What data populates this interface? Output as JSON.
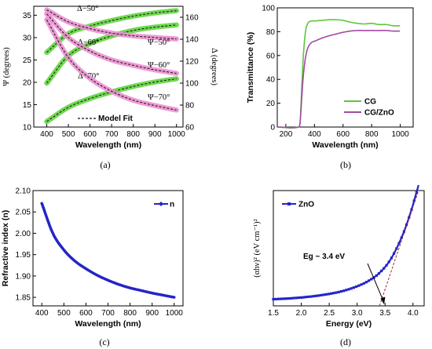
{
  "chart_data": [
    {
      "type": "line",
      "caption": "(a)",
      "xlabel": "Wavelength (nm)",
      "ylabel": "Ψ (degrees)",
      "y2label": "Δ (degrees)",
      "xlim": [
        340,
        1030
      ],
      "ylim": [
        10,
        37
      ],
      "y2lim": [
        60,
        170
      ],
      "xticks": [
        400,
        500,
        600,
        700,
        800,
        900,
        1000
      ],
      "yticks": [
        10,
        15,
        20,
        25,
        30,
        35
      ],
      "y2ticks": [
        60,
        80,
        100,
        120,
        140,
        160
      ],
      "legend": [
        "Model Fit"
      ],
      "legend_position": "bottom-left",
      "series": [
        {
          "name": "Δ−50°",
          "axis": "right",
          "x": [
            400,
            500,
            600,
            700,
            800,
            900,
            1000
          ],
          "y": [
            128,
            145,
            152,
            157,
            161,
            164,
            166
          ]
        },
        {
          "name": "Δ−60°",
          "axis": "right",
          "x": [
            400,
            500,
            600,
            700,
            800,
            900,
            1000
          ],
          "y": [
            100,
            125,
            136,
            143,
            148,
            151,
            153
          ]
        },
        {
          "name": "Δ−70°",
          "axis": "right",
          "x": [
            400,
            500,
            600,
            700,
            800,
            900,
            1000
          ],
          "y": [
            65,
            78,
            86,
            92,
            97,
            101,
            104
          ]
        },
        {
          "name": "Ψ−50°",
          "axis": "left",
          "x": [
            400,
            500,
            600,
            700,
            800,
            900,
            1000
          ],
          "y": [
            36.2,
            33.5,
            32.0,
            31.0,
            30.4,
            30.0,
            29.7
          ]
        },
        {
          "name": "Ψ−60°",
          "axis": "left",
          "x": [
            400,
            500,
            600,
            700,
            800,
            900,
            1000
          ],
          "y": [
            35.3,
            30.0,
            27.0,
            25.0,
            23.8,
            22.8,
            22.0
          ]
        },
        {
          "name": "Ψ−70°",
          "axis": "left",
          "x": [
            400,
            500,
            600,
            700,
            800,
            900,
            1000
          ],
          "y": [
            34.0,
            25.5,
            20.9,
            18.0,
            16.0,
            14.8,
            13.8
          ]
        }
      ],
      "colors": {
        "data": "#ec8fd0",
        "data_alt": "#62d43f",
        "fit": "#111111"
      }
    },
    {
      "type": "line",
      "caption": "(b)",
      "xlabel": "Wavelength (nm)",
      "ylabel": "Transmittance (%)",
      "xlim": [
        140,
        1090
      ],
      "ylim": [
        0,
        100
      ],
      "xticks": [
        200,
        400,
        600,
        800,
        1000
      ],
      "yticks": [
        0,
        20,
        40,
        60,
        80,
        100
      ],
      "legend_position": "lower-right",
      "series": [
        {
          "name": "CG",
          "color": "#5cc73a",
          "x": [
            140,
            290,
            300,
            310,
            320,
            330,
            340,
            350,
            360,
            380,
            400,
            450,
            500,
            550,
            600,
            650,
            700,
            750,
            800,
            850,
            900,
            950,
            1000
          ],
          "y": [
            0,
            0,
            5,
            30,
            55,
            72,
            82,
            86,
            88,
            89,
            89,
            89.5,
            90,
            90,
            89.5,
            88,
            87,
            86.5,
            87,
            86,
            86,
            85,
            85
          ]
        },
        {
          "name": "CG/ZnO",
          "color": "#a24aa6",
          "x": [
            140,
            290,
            300,
            310,
            320,
            330,
            340,
            350,
            360,
            380,
            400,
            450,
            500,
            550,
            600,
            650,
            700,
            750,
            800,
            850,
            900,
            950,
            1000
          ],
          "y": [
            0,
            0,
            4,
            22,
            40,
            52,
            60,
            65,
            68,
            71,
            72,
            74.5,
            76.5,
            78,
            79.5,
            80.5,
            81,
            81,
            81,
            81,
            81,
            80.5,
            80.5
          ]
        }
      ]
    },
    {
      "type": "line",
      "caption": "(c)",
      "xlabel": "Wavelength (nm)",
      "ylabel": "Refractive index (n)",
      "xlim": [
        360,
        1040
      ],
      "ylim": [
        1.83,
        2.1
      ],
      "xticks": [
        400,
        500,
        600,
        700,
        800,
        900,
        1000
      ],
      "yticks": [
        1.85,
        1.9,
        1.95,
        2.0,
        2.05,
        2.1
      ],
      "legend_position": "top-right",
      "series": [
        {
          "name": "n",
          "color": "#2424c8",
          "x": [
            400,
            450,
            500,
            550,
            600,
            650,
            700,
            750,
            800,
            850,
            900,
            950,
            1000
          ],
          "y": [
            2.07,
            2.0,
            1.961,
            1.935,
            1.917,
            1.902,
            1.89,
            1.88,
            1.872,
            1.866,
            1.86,
            1.855,
            1.85
          ]
        }
      ]
    },
    {
      "type": "line",
      "caption": "(d)",
      "xlabel": "Energy (eV)",
      "ylabel": "(αhν)² (eV cm⁻¹)²",
      "xlim": [
        1.5,
        4.2
      ],
      "ylim": [
        0,
        10
      ],
      "xticks": [
        1.5,
        2.0,
        2.5,
        3.0,
        3.5,
        4.0
      ],
      "legend_position": "top-left",
      "annotation": "Eg ~ 3.4 eV",
      "series": [
        {
          "name": "ZnO",
          "color": "#2424c8",
          "x": [
            1.5,
            1.75,
            2.0,
            2.25,
            2.5,
            2.75,
            3.0,
            3.2,
            3.4,
            3.6,
            3.8,
            3.95,
            4.1
          ],
          "y": [
            0.1,
            0.16,
            0.25,
            0.38,
            0.56,
            0.82,
            1.22,
            1.68,
            2.38,
            3.56,
            5.5,
            7.5,
            10
          ]
        },
        {
          "name": "",
          "style": "dashed",
          "color": "#9b2c2c",
          "x": [
            3.4,
            4.1
          ],
          "y": [
            0,
            10
          ]
        }
      ]
    }
  ]
}
